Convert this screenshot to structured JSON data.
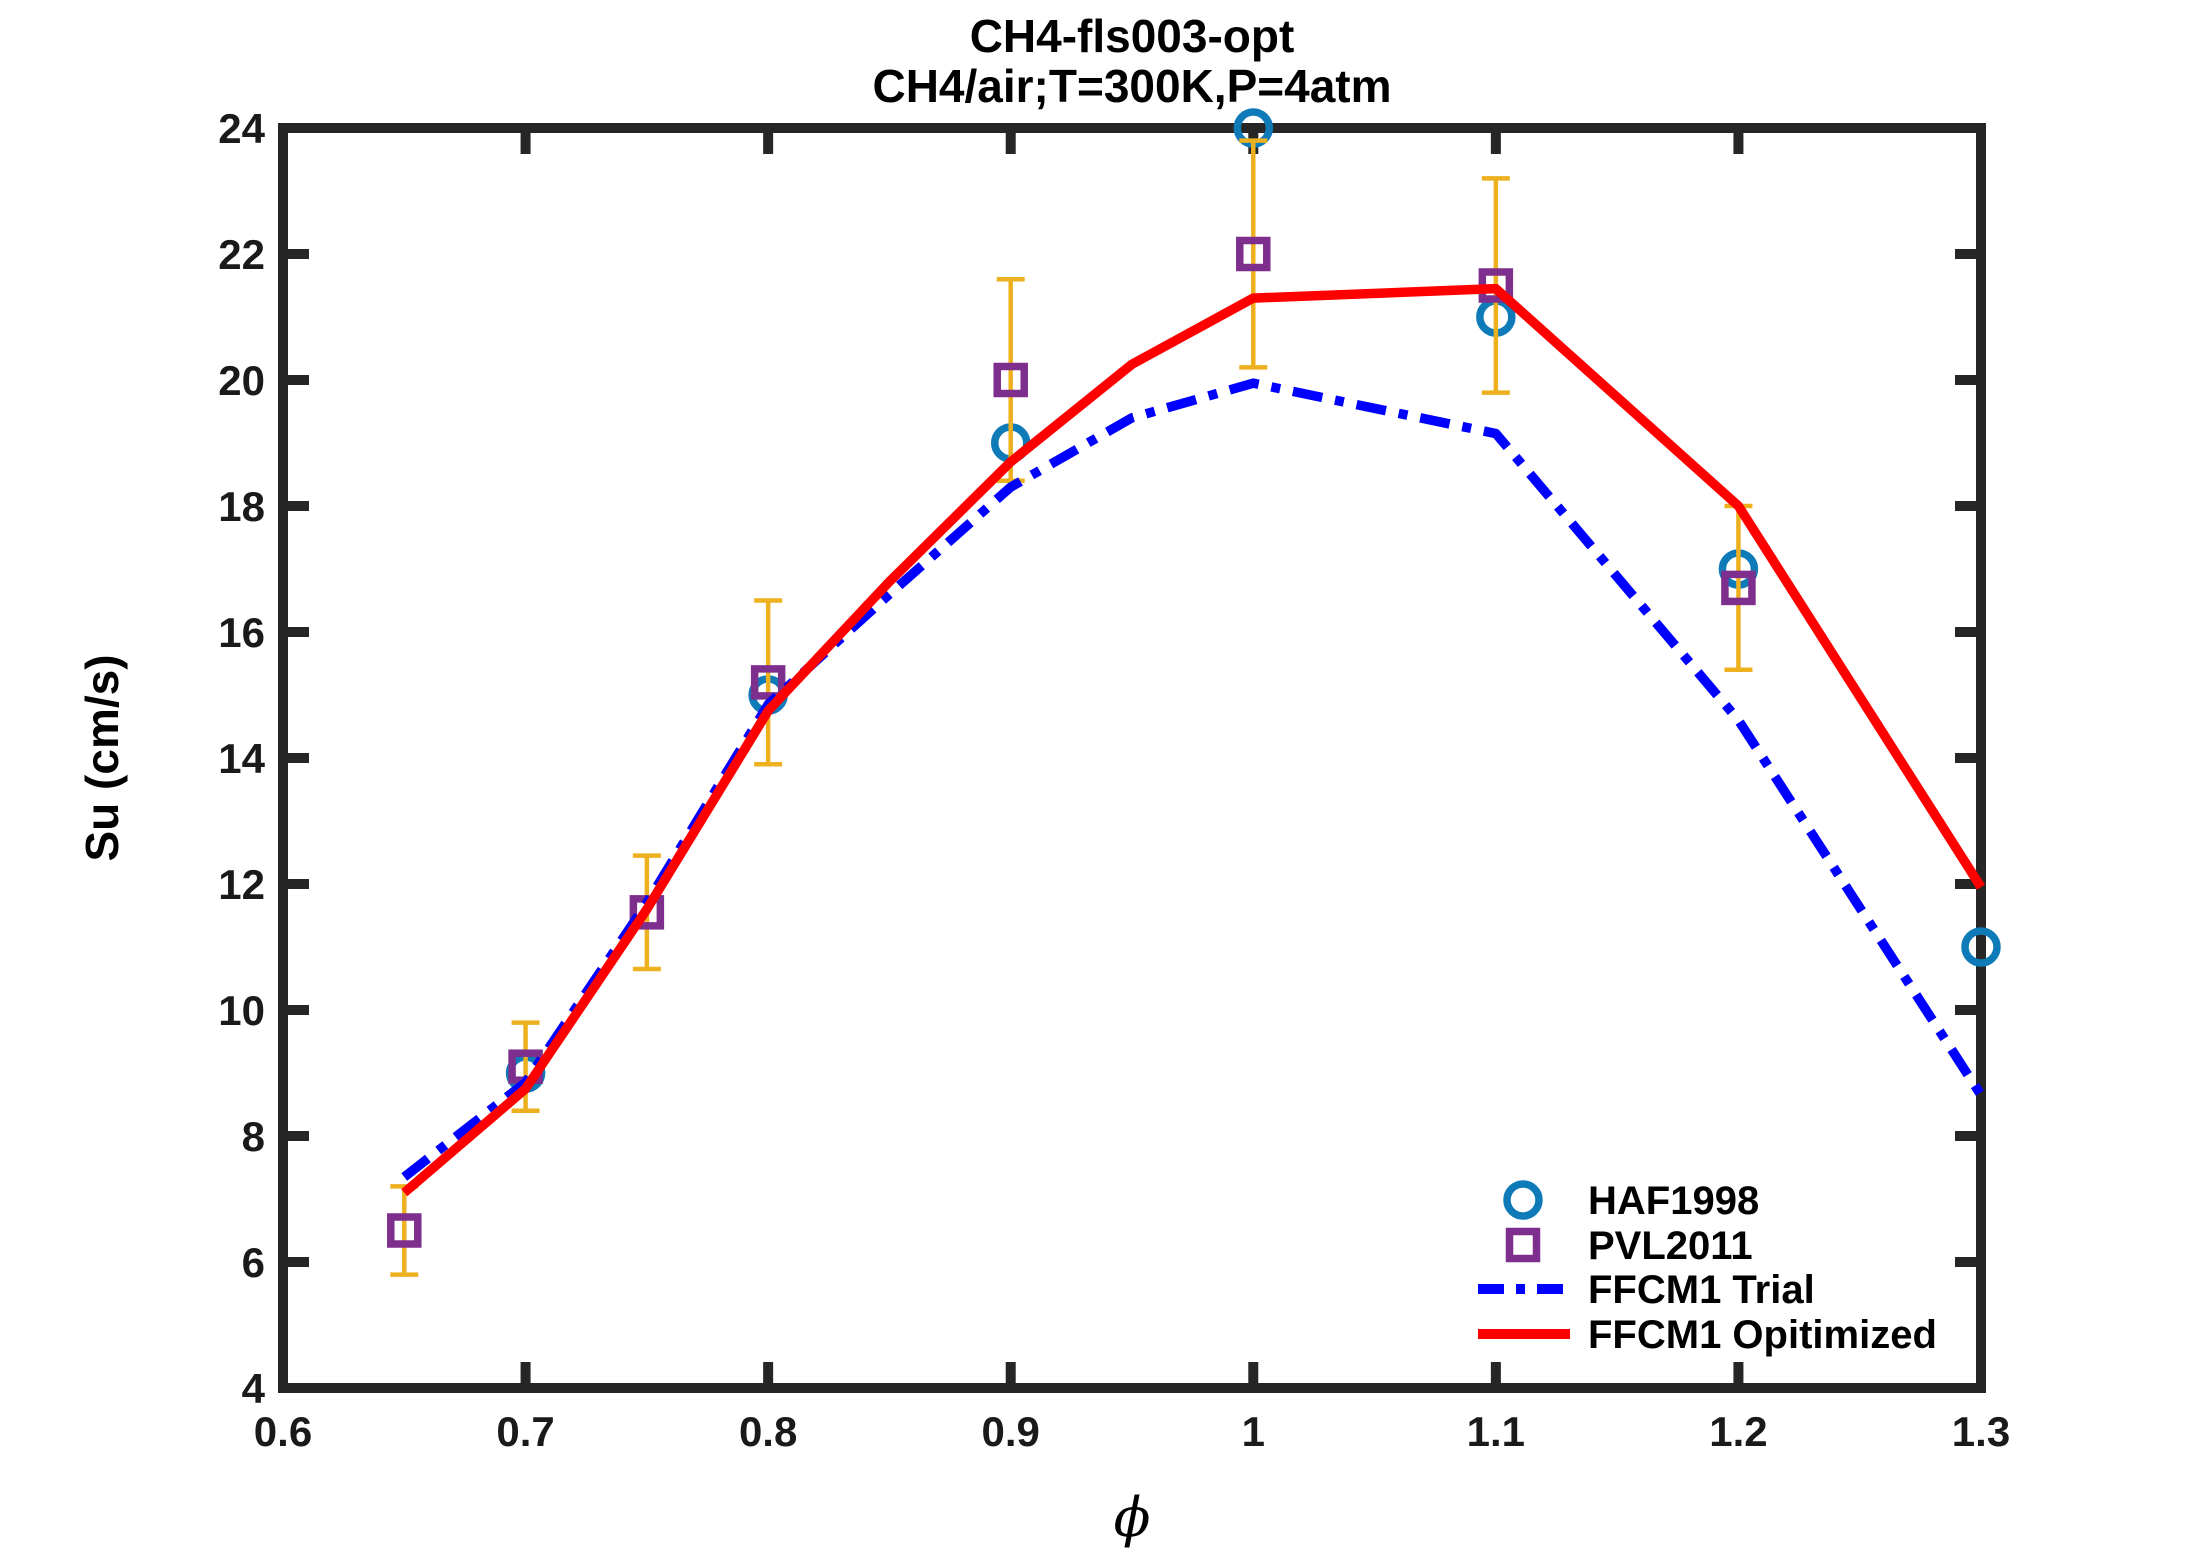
{
  "title": {
    "line1": "CH4-fls003-opt",
    "line2": "CH4/air;T=300K,P=4atm"
  },
  "axes": {
    "xlabel": "ϕ",
    "ylabel": "Su (cm/s)",
    "xlim": [
      0.6,
      1.3
    ],
    "ylim": [
      4,
      24
    ],
    "x_tick_values": [
      0.6,
      0.7,
      0.8,
      0.9,
      1.0,
      1.1,
      1.2,
      1.3
    ],
    "x_tick_labels": [
      "0.6",
      "0.7",
      "0.8",
      "0.9",
      "1",
      "1.1",
      "1.2",
      "1.3"
    ],
    "y_tick_values": [
      4,
      6,
      8,
      10,
      12,
      14,
      16,
      18,
      20,
      22,
      24
    ],
    "y_tick_labels": [
      "4",
      "6",
      "8",
      "10",
      "12",
      "14",
      "16",
      "18",
      "20",
      "22",
      "24"
    ],
    "axis_color": "#262626",
    "grid": false
  },
  "legend": {
    "position": "lower right",
    "entries": [
      "HAF1998",
      "PVL2011",
      "FFCM1 Trial",
      "FFCM1 Opitimized"
    ]
  },
  "colors": {
    "haf1998_marker": "#0E7AB8",
    "pvl2011_marker": "#7E2F8E",
    "error_bar": "#EDB120",
    "ffcm1_trial_line": "#0000FF",
    "ffcm1_optimized_line": "#FF0000",
    "background": "#FFFFFF"
  },
  "chart_data": {
    "type": "line",
    "title": "CH4-fls003-opt",
    "subtitle": "CH4/air;T=300K,P=4atm",
    "xlabel": "ϕ",
    "ylabel": "Su (cm/s)",
    "xlim": [
      0.6,
      1.3
    ],
    "ylim": [
      4,
      24
    ],
    "grid": false,
    "legend_position": "lower right",
    "series": [
      {
        "name": "HAF1998",
        "type": "scatter",
        "marker": "circle",
        "color": "#0E7AB8",
        "x": [
          0.7,
          0.8,
          0.9,
          1.0,
          1.1,
          1.2,
          1.3
        ],
        "y": [
          9.0,
          15.0,
          19.0,
          24.0,
          21.0,
          17.0,
          11.0
        ]
      },
      {
        "name": "PVL2011",
        "type": "scatter",
        "marker": "square",
        "color": "#7E2F8E",
        "error_bar_color": "#EDB120",
        "x": [
          0.65,
          0.7,
          0.75,
          0.8,
          0.9,
          1.0,
          1.1,
          1.2
        ],
        "y": [
          6.5,
          9.1,
          11.55,
          15.2,
          20.0,
          22.0,
          21.5,
          16.7
        ],
        "yerr": [
          0.7,
          0.7,
          0.9,
          1.3,
          1.6,
          1.8,
          1.7,
          1.3
        ]
      },
      {
        "name": "FFCM1 Trial",
        "type": "line",
        "style": "dashdot",
        "color": "#0000FF",
        "x": [
          0.65,
          0.7,
          0.75,
          0.8,
          0.85,
          0.9,
          0.95,
          1.0,
          1.1,
          1.2,
          1.3
        ],
        "y": [
          7.35,
          8.85,
          11.7,
          14.85,
          16.6,
          18.3,
          19.4,
          19.95,
          19.15,
          14.6,
          8.65
        ]
      },
      {
        "name": "FFCM1 Opitimized",
        "type": "line",
        "style": "solid",
        "color": "#FF0000",
        "x": [
          0.65,
          0.7,
          0.75,
          0.8,
          0.85,
          0.9,
          0.95,
          1.0,
          1.1,
          1.2,
          1.3
        ],
        "y": [
          7.1,
          8.75,
          11.6,
          14.75,
          16.8,
          18.7,
          20.25,
          21.3,
          21.45,
          18.0,
          11.95
        ]
      }
    ]
  }
}
